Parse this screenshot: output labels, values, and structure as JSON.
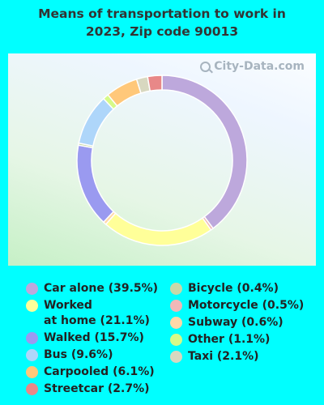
{
  "title": "Means of transportation to work in\n2023, Zip code 90013",
  "watermark": "City-Data.com",
  "chart_data": {
    "type": "pie",
    "style": "donut",
    "slices": [
      {
        "label": "Car alone (39.5%)",
        "value": 39.5,
        "color": "#BDA8DC"
      },
      {
        "label": "Motorcycle (0.5%)",
        "value": 0.5,
        "color": "#F0B8B8"
      },
      {
        "label": "Worked\nat home (21.1%)",
        "value": 21.1,
        "color": "#FFFF99"
      },
      {
        "label": "Subway (0.6%)",
        "value": 0.6,
        "color": "#FFD8A8"
      },
      {
        "label": "Walked (15.7%)",
        "value": 15.7,
        "color": "#9A9AF0"
      },
      {
        "label": "Bicycle (0.4%)",
        "value": 0.4,
        "color": "#C8D8A8"
      },
      {
        "label": "Bus (9.6%)",
        "value": 9.6,
        "color": "#AED6FA"
      },
      {
        "label": "Other (1.1%)",
        "value": 1.1,
        "color": "#D6FA88"
      },
      {
        "label": "Carpooled (6.1%)",
        "value": 6.1,
        "color": "#FFC87A"
      },
      {
        "label": "Taxi (2.1%)",
        "value": 2.1,
        "color": "#D8D8C0"
      },
      {
        "label": "Streetcar (2.7%)",
        "value": 2.7,
        "color": "#E88888"
      }
    ],
    "legend": {
      "left": [
        "Car alone (39.5%)",
        "Worked\nat home (21.1%)",
        "Walked (15.7%)",
        "Bus (9.6%)",
        "Carpooled (6.1%)",
        "Streetcar (2.7%)"
      ],
      "right": [
        "Bicycle (0.4%)",
        "Motorcycle (0.5%)",
        "Subway (0.6%)",
        "Other (1.1%)",
        "Taxi (2.1%)"
      ]
    }
  }
}
